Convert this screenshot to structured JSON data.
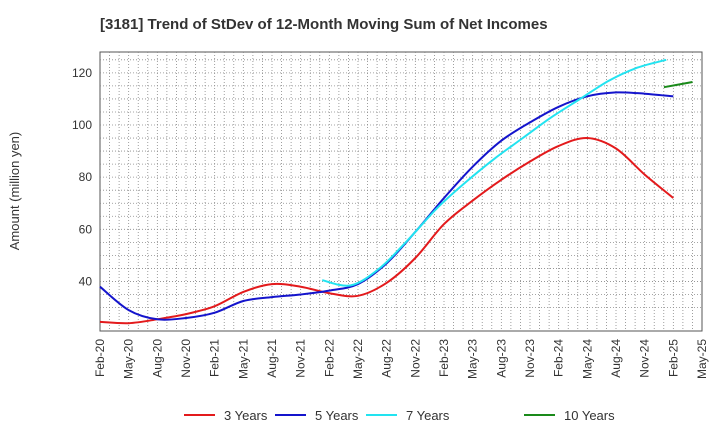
{
  "chart_data": {
    "type": "line",
    "title": "[3181]  Trend of StDev of 12-Month Moving Sum of Net Incomes",
    "ylabel": "Amount (million yen)",
    "xlabel": "",
    "ylim": [
      21,
      128
    ],
    "yticks": [
      40,
      60,
      80,
      100,
      120
    ],
    "grid": true,
    "legend_position": "bottom",
    "x_labels": [
      "Feb-20",
      "May-20",
      "Aug-20",
      "Nov-20",
      "Feb-21",
      "May-21",
      "Aug-21",
      "Nov-21",
      "Feb-22",
      "May-22",
      "Aug-22",
      "Nov-22",
      "Feb-23",
      "May-23",
      "Aug-23",
      "Nov-23",
      "Feb-24",
      "May-24",
      "Aug-24",
      "Nov-24",
      "Feb-25",
      "May-25"
    ],
    "series": [
      {
        "name": "3 Years",
        "color": "#e31a1c",
        "values": [
          24.5,
          24,
          25.5,
          27.5,
          30.5,
          36,
          39,
          38,
          35.5,
          34.5,
          39.5,
          49,
          62,
          71,
          79,
          86,
          92,
          95,
          91,
          81,
          72
        ]
      },
      {
        "name": "5 Years",
        "color": "#1414cc",
        "values": [
          38,
          29,
          25.5,
          26,
          28,
          32.5,
          34,
          35,
          36.5,
          39,
          47,
          59,
          72,
          84,
          94,
          101,
          107,
          111,
          112.5,
          112,
          111
        ]
      },
      {
        "name": "7 Years",
        "color": "#22e3f0",
        "start_index": 7.75,
        "values": [
          40.5,
          38.5,
          45,
          56,
          68,
          78,
          87,
          95,
          103,
          110,
          117,
          122,
          125
        ]
      },
      {
        "name": "10 Years",
        "color": "#1a8a1a",
        "start_index": 19.67,
        "values": [
          114.5,
          116.5
        ]
      }
    ]
  }
}
